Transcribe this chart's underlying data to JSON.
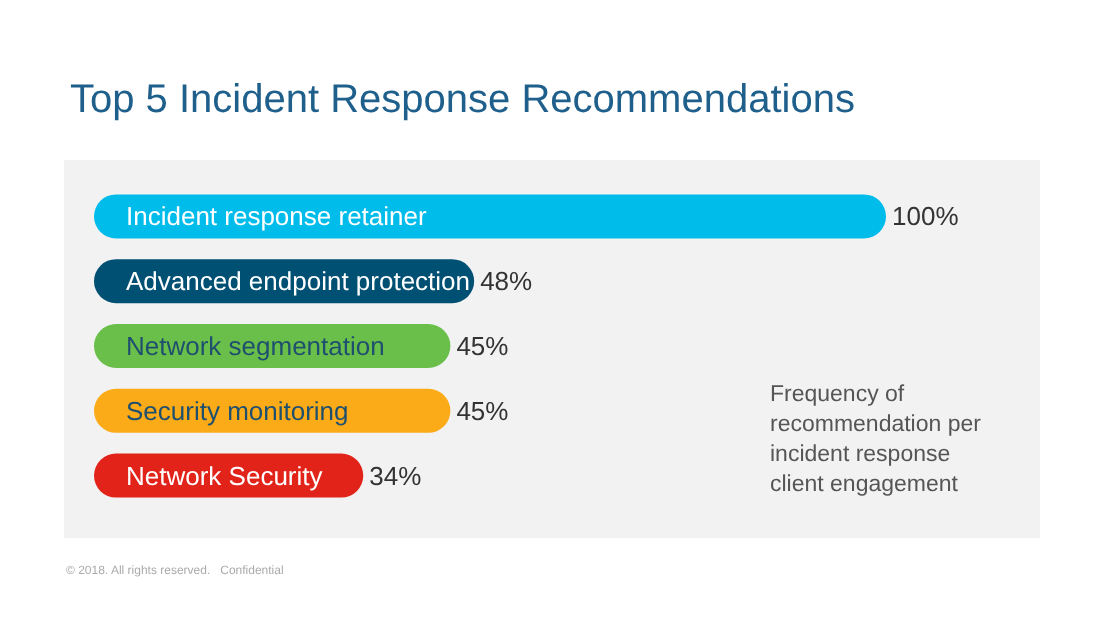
{
  "chart_data": {
    "type": "bar",
    "orientation": "horizontal",
    "title": "Top 5 Incident Response Recommendations",
    "categories": [
      "Incident response retainer",
      "Advanced endpoint protection",
      "Network segmentation",
      "Security monitoring",
      "Network Security"
    ],
    "values": [
      100,
      48,
      45,
      45,
      34
    ],
    "colors": [
      "#00bceb",
      "#005073",
      "#6abf4b",
      "#fbab18",
      "#e2231a"
    ],
    "value_labels": [
      "100%",
      "48%",
      "45%",
      "45%",
      "34%"
    ],
    "annotations": [
      "Frequency of\nrecommendation per\nincident response\nclient engagement",
      "© 2018. All rights reserved.   Confidential"
    ],
    "grid": false
  }
}
